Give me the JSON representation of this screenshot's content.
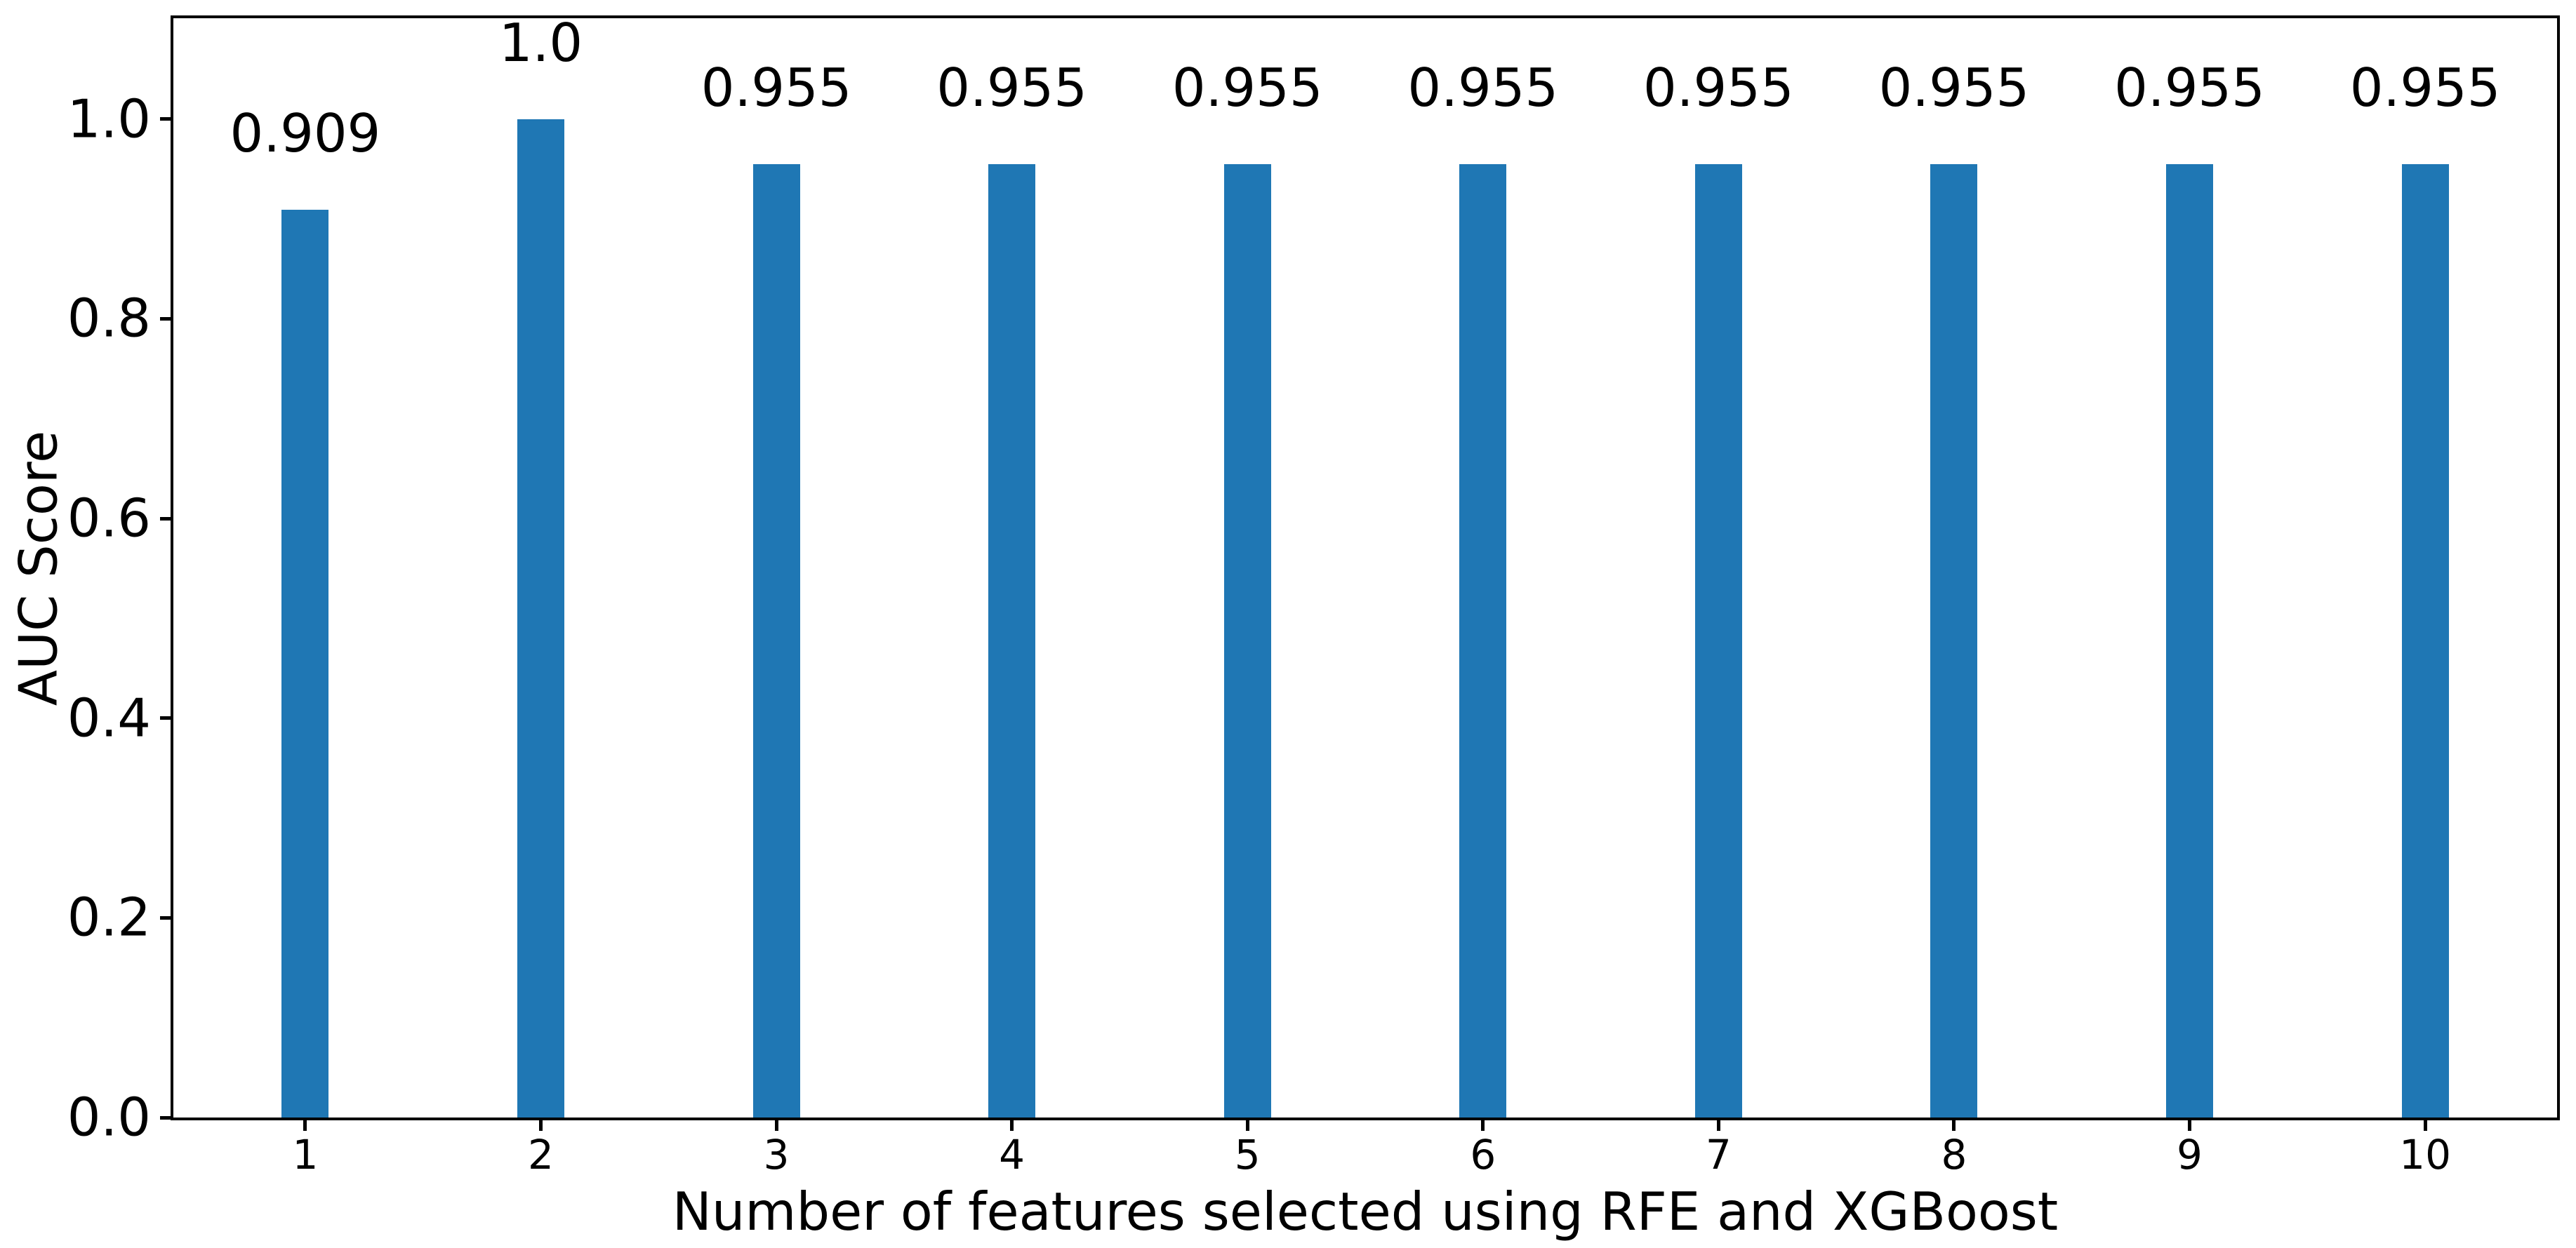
{
  "chart_data": {
    "type": "bar",
    "categories": [
      "1",
      "2",
      "3",
      "4",
      "5",
      "6",
      "7",
      "8",
      "9",
      "10"
    ],
    "values": [
      0.909,
      1.0,
      0.955,
      0.955,
      0.955,
      0.955,
      0.955,
      0.955,
      0.955,
      0.955
    ],
    "bar_labels": [
      "0.909",
      "1.0",
      "0.955",
      "0.955",
      "0.955",
      "0.955",
      "0.955",
      "0.955",
      "0.955",
      "0.955"
    ],
    "title": "",
    "xlabel": "Number of features selected using RFE and XGBoost",
    "ylabel": "AUC Score",
    "ytick_labels": [
      "0.0",
      "0.2",
      "0.4",
      "0.6",
      "0.8",
      "1.0"
    ],
    "ytick_values": [
      0.0,
      0.2,
      0.4,
      0.6,
      0.8,
      1.0
    ],
    "xlim": [
      0.44,
      10.56
    ],
    "ylim": [
      0,
      1.101
    ],
    "bar_width_units": 0.2,
    "label_offset_units": 0.05,
    "bar_color": "#1f77b4",
    "spine_color": "#000000",
    "grid": false,
    "legend": null
  }
}
